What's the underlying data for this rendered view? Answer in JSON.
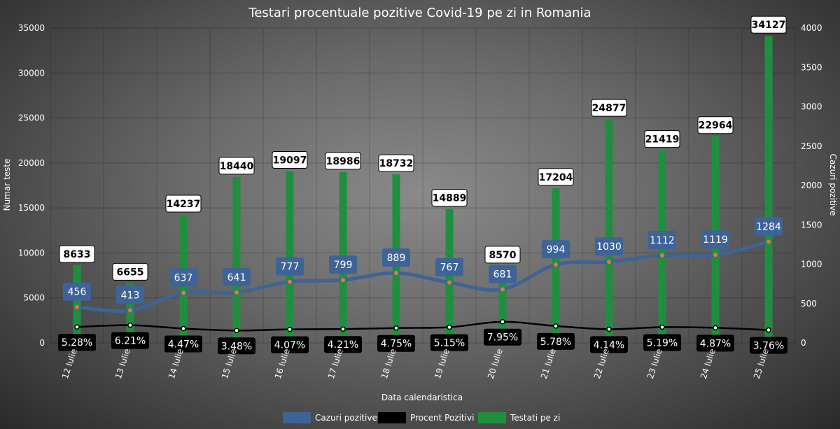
{
  "chart_data": {
    "type": "bar",
    "title": "Testari procentuale pozitive Covid-19 pe zi in Romania",
    "xlabel": "Data calendaristica",
    "ylabel": "Numar teste",
    "y2label": "Cazuri pozitive",
    "ylim": [
      0,
      35000
    ],
    "y2lim": [
      0,
      4000
    ],
    "yticks": [
      "0",
      "5000",
      "10000",
      "15000",
      "20000",
      "25000",
      "30000",
      "35000"
    ],
    "y2ticks": [
      "0",
      "500",
      "1000",
      "1500",
      "2000",
      "2500",
      "3000",
      "3500",
      "4000"
    ],
    "grid": true,
    "legend_position": "bottom",
    "categories": [
      "12 Iulie",
      "13 Iulie",
      "14 Iulie",
      "15 Iulie",
      "16 Iulie",
      "17 Iulie",
      "18 Iulie",
      "19 Iulie",
      "20 Iulie",
      "21 Iulie",
      "22 Iulie",
      "23 Iulie",
      "24 Iulie",
      "25 Iulie"
    ],
    "series": [
      {
        "name": "Cazuri pozitive",
        "type": "line",
        "axis": "right",
        "color": "#3e6396",
        "values": [
          456,
          413,
          637,
          641,
          777,
          799,
          889,
          767,
          681,
          994,
          1030,
          1112,
          1119,
          1284
        ]
      },
      {
        "name": "Procent Pozitivi",
        "type": "line",
        "axis": "right",
        "color": "#000000",
        "values": [
          5.28,
          6.21,
          4.47,
          3.48,
          4.07,
          4.21,
          4.75,
          5.15,
          7.95,
          5.78,
          4.14,
          5.19,
          4.87,
          3.76
        ],
        "labels": [
          "5.28%",
          "6.21%",
          "4.47%",
          "3.48%",
          "4.07%",
          "4.21%",
          "4.75%",
          "5.15%",
          "7.95%",
          "5.78%",
          "4.14%",
          "5.19%",
          "4.87%",
          "3.76%"
        ]
      },
      {
        "name": "Testati pe zi",
        "type": "bar",
        "axis": "left",
        "color": "#1f8f3f",
        "values": [
          8633,
          6655,
          14237,
          18440,
          19097,
          18986,
          18732,
          14889,
          8570,
          17204,
          24877,
          21419,
          22964,
          34127
        ]
      }
    ]
  },
  "colors": {
    "positive": "#3e6396",
    "percent": "#000000",
    "tests": "#1f8f3f",
    "point": "#e07b39"
  }
}
